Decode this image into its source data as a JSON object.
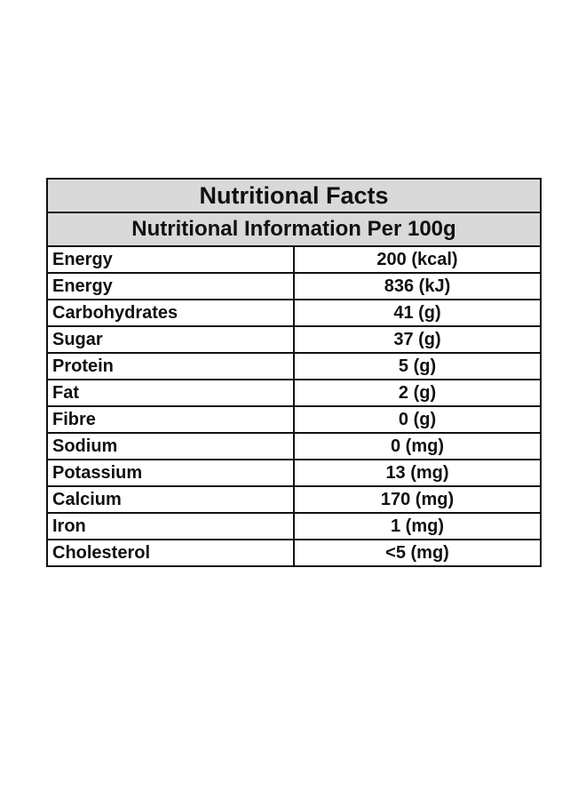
{
  "table": {
    "title": "Nutritional Facts",
    "subtitle": "Nutritional Information Per 100g",
    "rows": [
      {
        "name": "Energy",
        "value": "200 (kcal)"
      },
      {
        "name": "Energy",
        "value": "836 (kJ)"
      },
      {
        "name": "Carbohydrates",
        "value": "41 (g)"
      },
      {
        "name": "Sugar",
        "value": "37 (g)"
      },
      {
        "name": "Protein",
        "value": "5 (g)"
      },
      {
        "name": "Fat",
        "value": "2 (g)"
      },
      {
        "name": "Fibre",
        "value": "0 (g)"
      },
      {
        "name": "Sodium",
        "value": "0 (mg)"
      },
      {
        "name": "Potassium",
        "value": "13 (mg)"
      },
      {
        "name": "Calcium",
        "value": "170 (mg)"
      },
      {
        "name": "Iron",
        "value": "1 (mg)"
      },
      {
        "name": "Cholesterol",
        "value": "<5 (mg)"
      }
    ]
  },
  "colors": {
    "header_background": "#d9d9d9",
    "border": "#111111",
    "text": "#111111",
    "page_background": "#ffffff"
  }
}
